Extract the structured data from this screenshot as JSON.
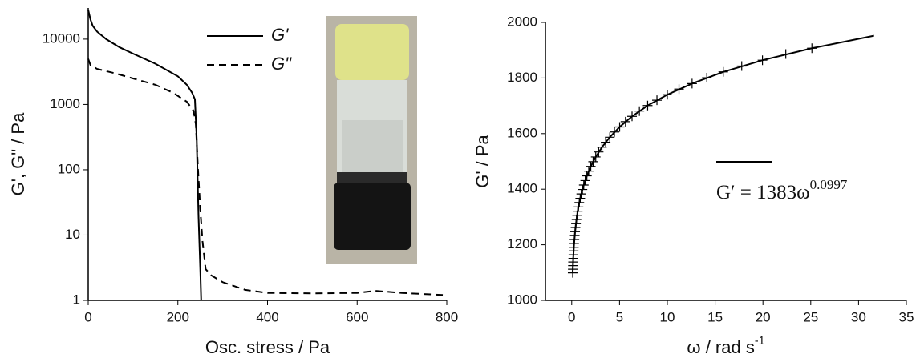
{
  "chart_data": [
    {
      "type": "line",
      "xlabel": "Osc. stress / Pa",
      "ylabel": "G', G\" / Pa",
      "log_y": true,
      "xlim": [
        0,
        800
      ],
      "xticks": [
        0,
        200,
        400,
        600,
        800
      ],
      "ylim": [
        1,
        30000
      ],
      "yticks": [
        1,
        10,
        100,
        1000,
        10000
      ],
      "series": [
        {
          "name": "G'",
          "color": "#000000",
          "dash": false,
          "x": [
            0,
            5,
            10,
            20,
            40,
            70,
            100,
            150,
            200,
            220,
            232,
            238,
            242,
            246,
            250,
            252
          ],
          "values": [
            28000,
            20000,
            16000,
            13000,
            10000,
            7500,
            6000,
            4200,
            2700,
            2000,
            1500,
            1200,
            300,
            20,
            3,
            1
          ]
        },
        {
          "name": "G\"",
          "color": "#000000",
          "dash": true,
          "x": [
            0,
            5,
            20,
            60,
            100,
            150,
            190,
            220,
            235,
            240,
            245,
            250,
            255,
            262,
            275,
            300,
            350,
            400,
            500,
            600,
            640,
            700,
            800
          ],
          "values": [
            5000,
            4000,
            3500,
            3000,
            2500,
            2000,
            1500,
            1100,
            800,
            500,
            100,
            25,
            8,
            3,
            2.4,
            1.9,
            1.45,
            1.3,
            1.28,
            1.3,
            1.4,
            1.3,
            1.2
          ]
        }
      ]
    },
    {
      "type": "line",
      "xlabel": {
        "text": "ω / rad s",
        "superscript": "-1"
      },
      "ylabel": "G' / Pa",
      "log_y": false,
      "xlim": [
        -2.75,
        35
      ],
      "xticks": [
        0,
        5,
        10,
        15,
        20,
        25,
        30,
        35
      ],
      "ylim": [
        1000,
        2000
      ],
      "yticks": [
        1000,
        1200,
        1400,
        1600,
        1800,
        2000
      ],
      "annotation": {
        "text": "G′ = 1383ω",
        "superscript": "0.0997"
      },
      "series": [
        {
          "color": "#000000",
          "marker": "+",
          "line": false,
          "x": [
            0.1,
            0.112,
            0.126,
            0.141,
            0.158,
            0.178,
            0.2,
            0.224,
            0.251,
            0.282,
            0.316,
            0.355,
            0.398,
            0.447,
            0.501,
            0.562,
            0.631,
            0.708,
            0.794,
            0.891,
            1,
            1.122,
            1.259,
            1.413,
            1.585,
            1.778,
            1.995,
            2.239,
            2.512,
            2.818,
            3.162,
            3.548,
            3.981,
            4.467,
            5.012,
            5.623,
            6.31,
            7.079,
            7.943,
            8.913,
            10,
            11.22,
            12.59,
            14.13,
            15.85,
            17.78,
            19.95,
            22.39,
            25.12
          ],
          "values": [
            1099,
            1112,
            1125,
            1138,
            1151,
            1164,
            1178,
            1191,
            1205,
            1219,
            1233,
            1247,
            1262,
            1276,
            1291,
            1306,
            1321,
            1336,
            1352,
            1367,
            1383,
            1399,
            1415,
            1431,
            1448,
            1465,
            1482,
            1499,
            1516,
            1534,
            1551,
            1569,
            1587,
            1606,
            1624,
            1643,
            1662,
            1681,
            1701,
            1720,
            1740,
            1760,
            1780,
            1801,
            1822,
            1843,
            1864,
            1886,
            1907
          ]
        },
        {
          "color": "#000000",
          "line": true,
          "x": [
            0.1,
            0.126,
            0.158,
            0.2,
            0.251,
            0.316,
            0.398,
            0.501,
            0.631,
            0.794,
            1,
            1.259,
            1.585,
            1.995,
            2.512,
            3.162,
            3.981,
            5.012,
            6.31,
            7.943,
            10,
            12.59,
            15.85,
            19.95,
            25.12,
            31.62
          ],
          "values": [
            1099,
            1125,
            1151,
            1178,
            1205,
            1233,
            1262,
            1291,
            1321,
            1352,
            1383,
            1415,
            1448,
            1482,
            1516,
            1551,
            1587,
            1624,
            1662,
            1701,
            1740,
            1780,
            1822,
            1864,
            1907,
            1952
          ]
        }
      ]
    }
  ]
}
